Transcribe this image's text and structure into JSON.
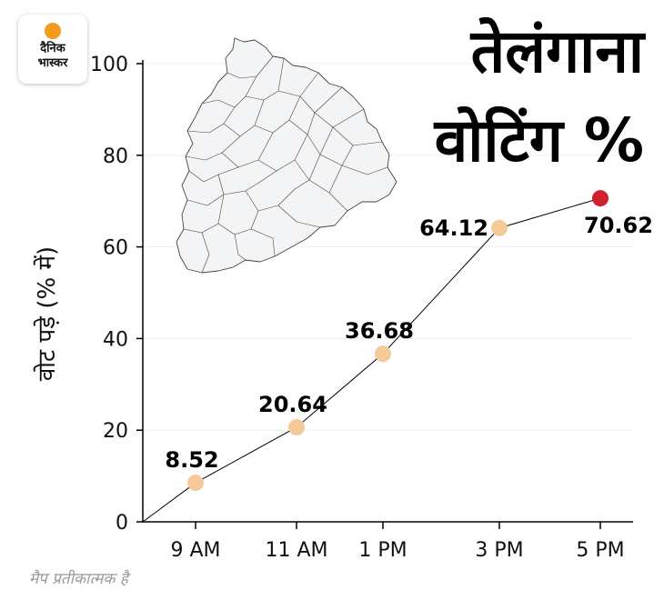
{
  "brand": {
    "line1": "दैनिक",
    "line2": "भास्कर"
  },
  "title_line1": "तेलंगाना",
  "title_line2": "वोटिंग %",
  "note": "मैप प्रतीकात्मक है",
  "colors": {
    "point": "#f5c99a",
    "last_point": "#d0202e",
    "line": "#000000",
    "logo_dot": "#f39a1f"
  },
  "chart_data": {
    "type": "line",
    "title": "तेलंगाना वोटिंग %",
    "xlabel": "",
    "ylabel": "वोट पड़े (% में)",
    "categories": [
      "9 AM",
      "11 AM",
      "1 PM",
      "3 PM",
      "5 PM"
    ],
    "values": [
      8.52,
      20.64,
      36.68,
      64.12,
      70.62
    ],
    "labels": [
      "8.52",
      "20.64",
      "36.68",
      "64.12",
      "70.62"
    ],
    "line_start": [
      0,
      0
    ],
    "ylim": [
      0,
      100
    ],
    "yticks": [
      0,
      20,
      40,
      60,
      80,
      100
    ],
    "grid": true
  }
}
